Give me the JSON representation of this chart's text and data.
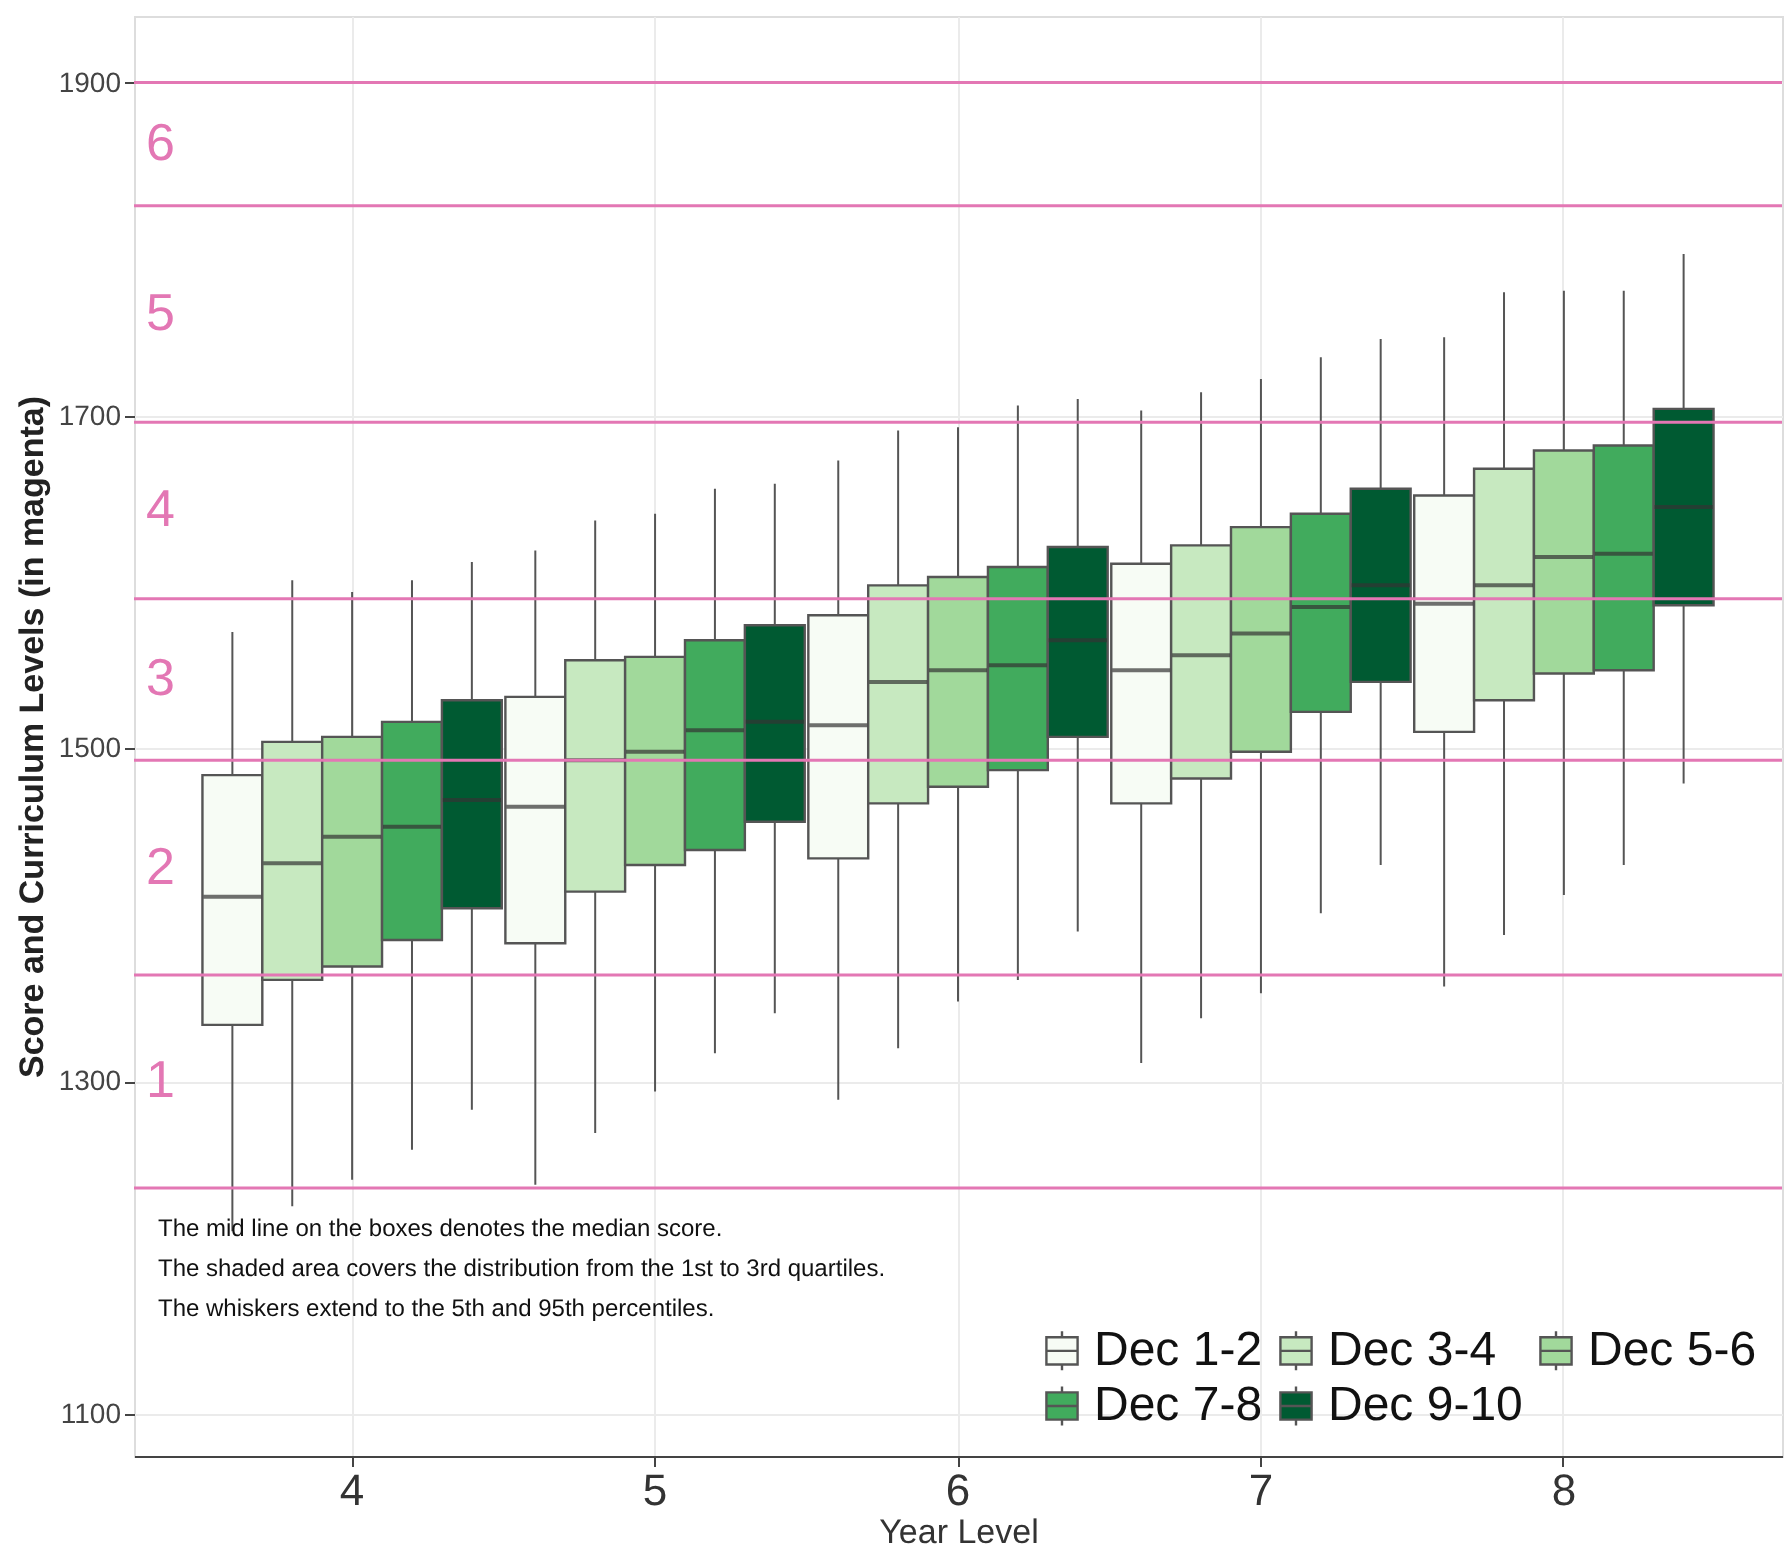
{
  "chart_data": {
    "type": "box",
    "xlabel": "Year Level",
    "ylabel": "Score and Curriculum Levels (in magenta)",
    "categories": [
      "4",
      "5",
      "6",
      "7",
      "8"
    ],
    "ylim": [
      1075,
      1940
    ],
    "yticks": [
      1100,
      1300,
      1500,
      1700,
      1900
    ],
    "grid": true,
    "legend": "bottom right",
    "series": [
      {
        "name": "Dec 1-2",
        "color": "#f7fcf5",
        "boxes": [
          {
            "low": 1210,
            "q1": 1334,
            "median": 1411,
            "q3": 1484,
            "high": 1570
          },
          {
            "low": 1238,
            "q1": 1383,
            "median": 1465,
            "q3": 1531,
            "high": 1619
          },
          {
            "low": 1289,
            "q1": 1434,
            "median": 1514,
            "q3": 1580,
            "high": 1673
          },
          {
            "low": 1311,
            "q1": 1467,
            "median": 1547,
            "q3": 1611,
            "high": 1703
          },
          {
            "low": 1357,
            "q1": 1510,
            "median": 1587,
            "q3": 1652,
            "high": 1747
          }
        ]
      },
      {
        "name": "Dec 3-4",
        "color": "#c7e9c0",
        "boxes": [
          {
            "low": 1225,
            "q1": 1361,
            "median": 1431,
            "q3": 1504,
            "high": 1601
          },
          {
            "low": 1269,
            "q1": 1414,
            "median": 1493,
            "q3": 1553,
            "high": 1637
          },
          {
            "low": 1320,
            "q1": 1467,
            "median": 1540,
            "q3": 1598,
            "high": 1691
          },
          {
            "low": 1338,
            "q1": 1482,
            "median": 1556,
            "q3": 1622,
            "high": 1714
          },
          {
            "low": 1388,
            "q1": 1529,
            "median": 1598,
            "q3": 1668,
            "high": 1774
          }
        ]
      },
      {
        "name": "Dec 5-6",
        "color": "#a1d99b",
        "boxes": [
          {
            "low": 1241,
            "q1": 1369,
            "median": 1447,
            "q3": 1507,
            "high": 1594
          },
          {
            "low": 1294,
            "q1": 1430,
            "median": 1498,
            "q3": 1555,
            "high": 1641
          },
          {
            "low": 1348,
            "q1": 1477,
            "median": 1547,
            "q3": 1603,
            "high": 1693
          },
          {
            "low": 1353,
            "q1": 1498,
            "median": 1569,
            "q3": 1633,
            "high": 1722
          },
          {
            "low": 1412,
            "q1": 1545,
            "median": 1615,
            "q3": 1679,
            "high": 1775
          }
        ]
      },
      {
        "name": "Dec 7-8",
        "color": "#41ab5d",
        "boxes": [
          {
            "low": 1259,
            "q1": 1385,
            "median": 1453,
            "q3": 1516,
            "high": 1601
          },
          {
            "low": 1317,
            "q1": 1439,
            "median": 1511,
            "q3": 1565,
            "high": 1656
          },
          {
            "low": 1361,
            "q1": 1487,
            "median": 1550,
            "q3": 1609,
            "high": 1706
          },
          {
            "low": 1401,
            "q1": 1522,
            "median": 1585,
            "q3": 1641,
            "high": 1735
          },
          {
            "low": 1430,
            "q1": 1547,
            "median": 1617,
            "q3": 1682,
            "high": 1775
          }
        ]
      },
      {
        "name": "Dec 9-10",
        "color": "#005a32",
        "boxes": [
          {
            "low": 1283,
            "q1": 1404,
            "median": 1469,
            "q3": 1529,
            "high": 1612
          },
          {
            "low": 1341,
            "q1": 1456,
            "median": 1516,
            "q3": 1574,
            "high": 1659
          },
          {
            "low": 1390,
            "q1": 1507,
            "median": 1565,
            "q3": 1621,
            "high": 1710
          },
          {
            "low": 1430,
            "q1": 1540,
            "median": 1598,
            "q3": 1656,
            "high": 1746
          },
          {
            "low": 1479,
            "q1": 1586,
            "median": 1645,
            "q3": 1704,
            "high": 1797
          }
        ]
      }
    ],
    "ref_lines": [
      {
        "axis": "y",
        "value": 1900,
        "color": "#e377b4"
      },
      {
        "axis": "y",
        "value": 1826,
        "color": "#e377b4"
      },
      {
        "axis": "y",
        "value": 1696,
        "color": "#e377b4"
      },
      {
        "axis": "y",
        "value": 1590,
        "color": "#e377b4"
      },
      {
        "axis": "y",
        "value": 1493,
        "color": "#e377b4"
      },
      {
        "axis": "y",
        "value": 1364,
        "color": "#e377b4"
      },
      {
        "axis": "y",
        "value": 1236,
        "color": "#e377b4"
      }
    ],
    "annotations": [
      "6",
      "5",
      "4",
      "3",
      "2",
      "1",
      "The mid line on the boxes denotes the median score.",
      "The shaded area  covers the distribution from the 1st to 3rd quartiles.",
      "The whiskers extend to the 5th and 95th percentiles."
    ]
  }
}
